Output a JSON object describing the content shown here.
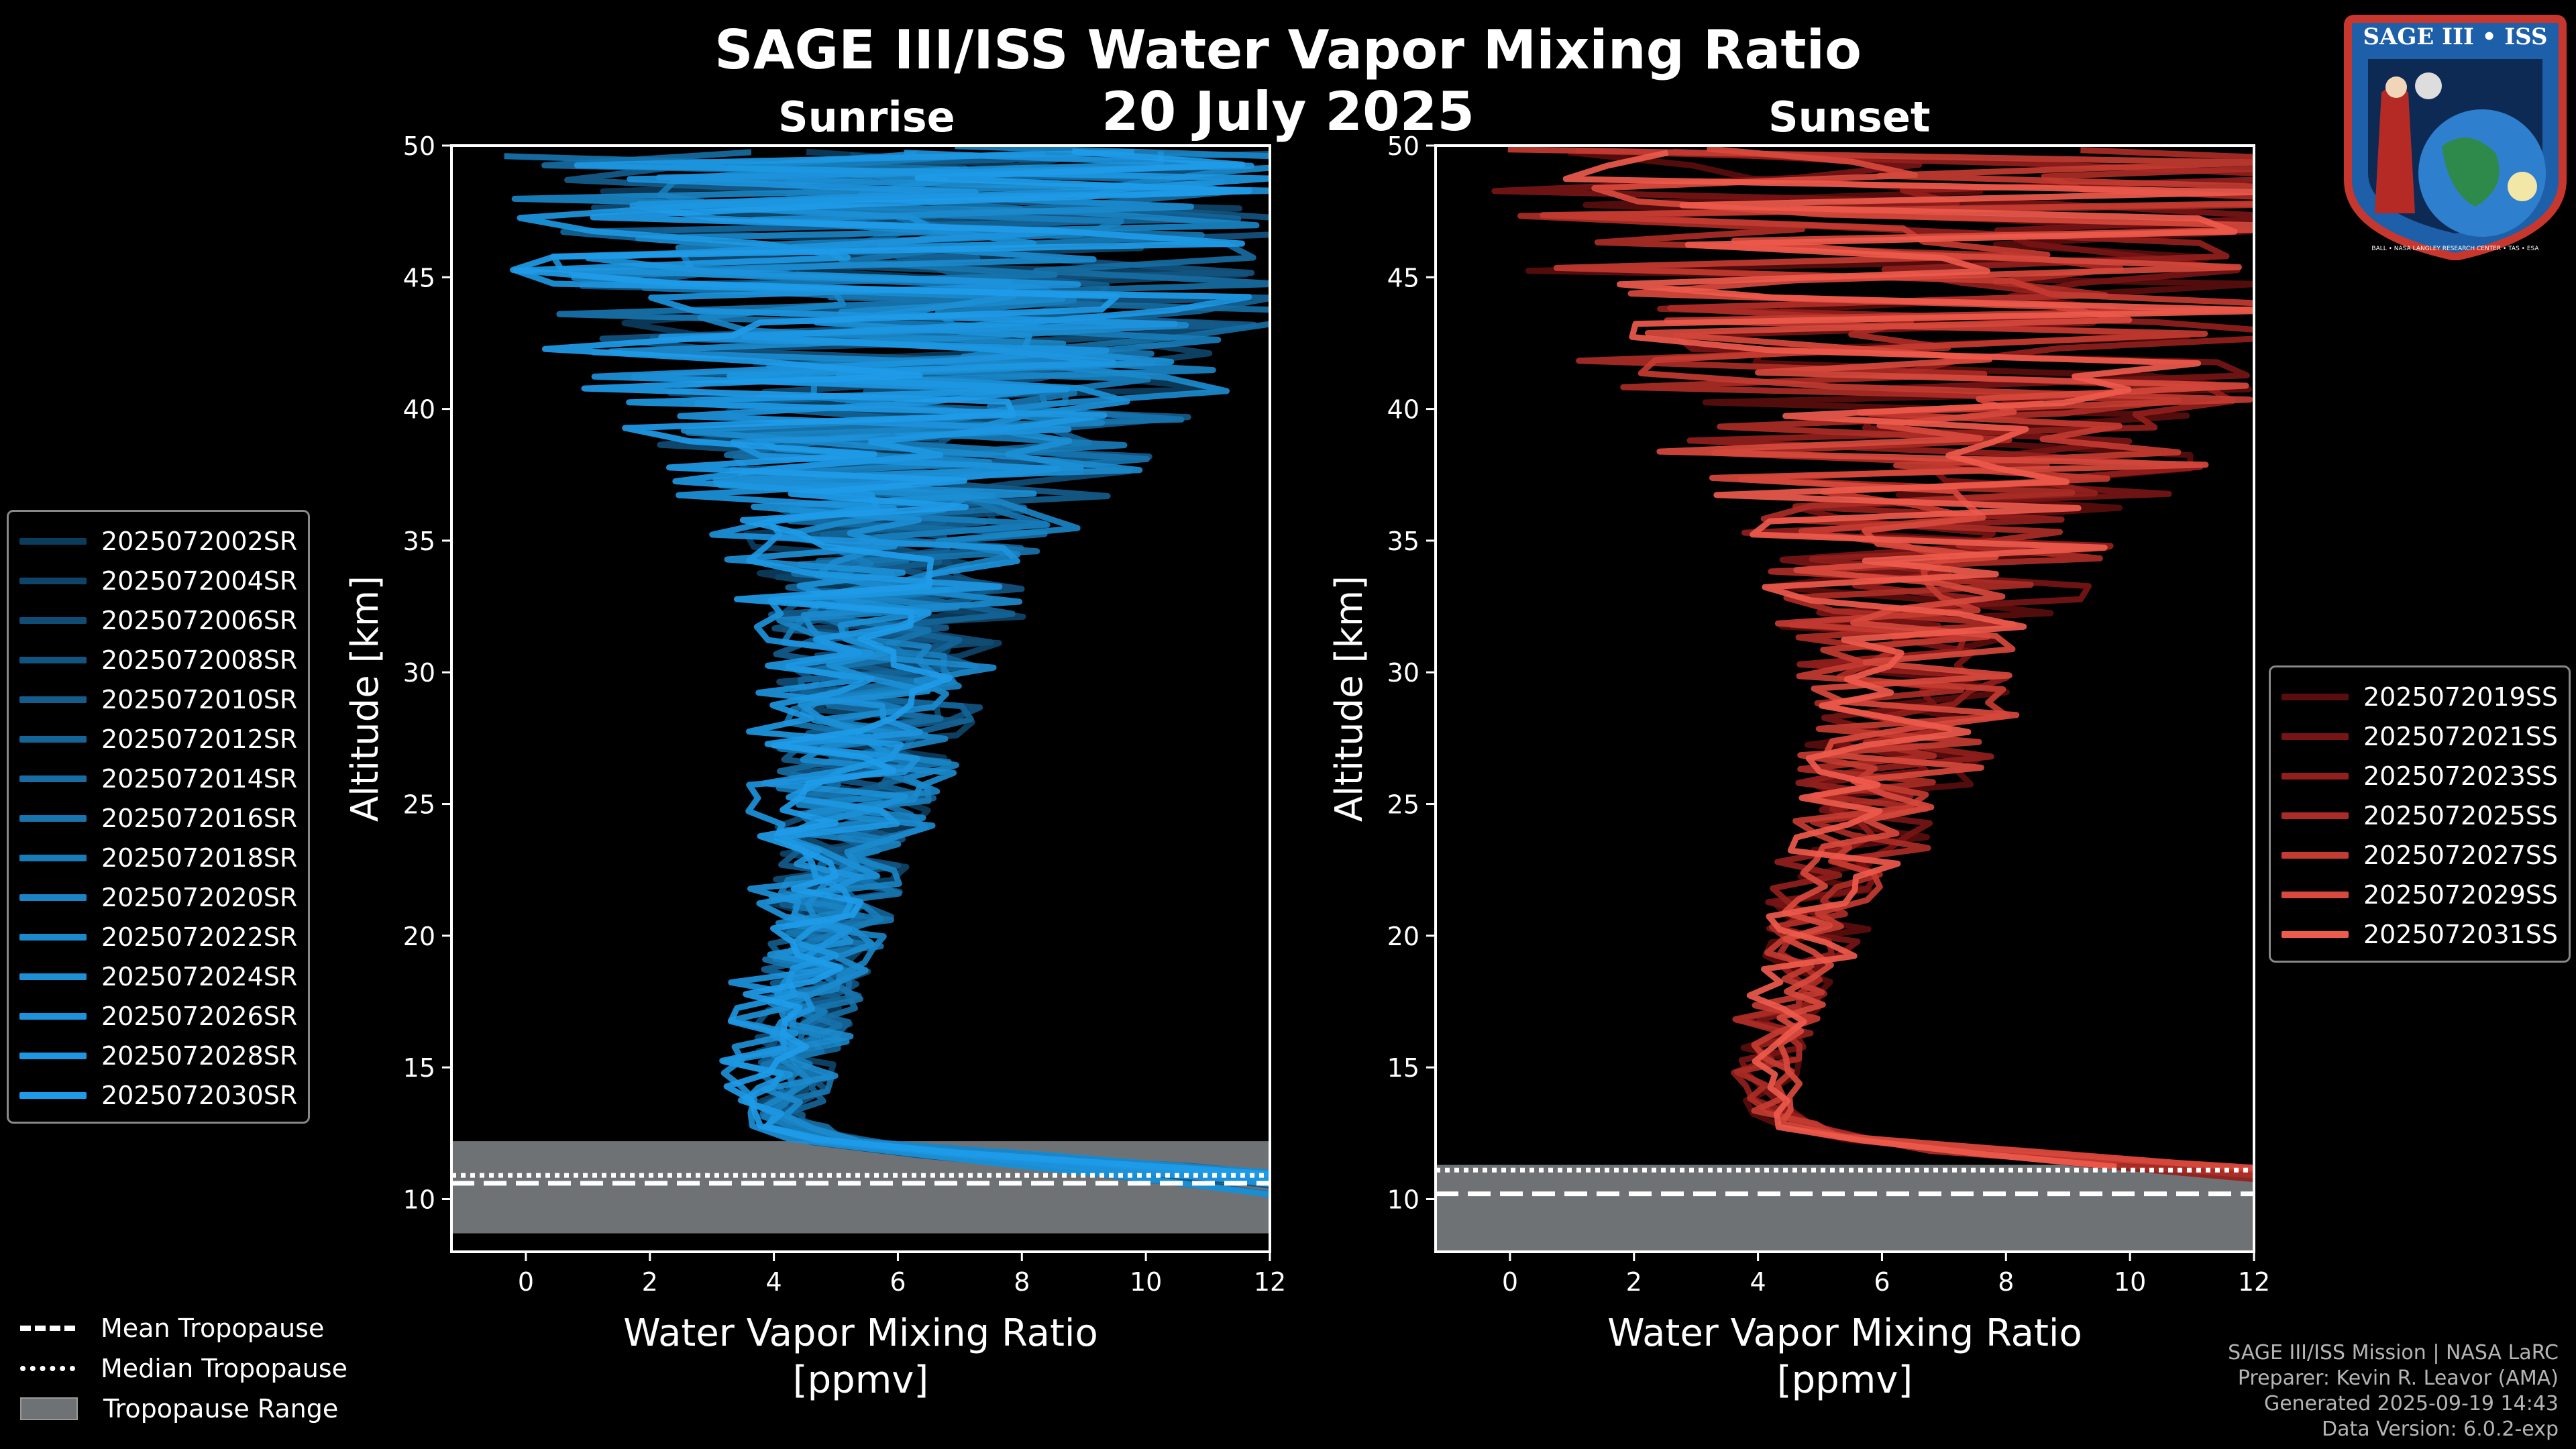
{
  "header": {
    "main_title": "SAGE III/ISS Water Vapor Mixing Ratio",
    "date": "20 July 2025",
    "logo_text": "SAGE III • ISS",
    "logo_ring_text": "BALL • NASA LANGLEY RESEARCH CENTER • TAS • ESA"
  },
  "colors": {
    "background": "#000000",
    "sunrise_series": [
      "#0c3c5c",
      "#0e4468",
      "#104c74",
      "#125480",
      "#135c8c",
      "#146498",
      "#166ca3",
      "#1774ae",
      "#187cb9",
      "#1a84c4",
      "#1b8acd",
      "#1c8fd5",
      "#1d93dc",
      "#1d97e2",
      "#1e9be8"
    ],
    "sunset_series": [
      "#5a0d0d",
      "#771515",
      "#921f1c",
      "#ab2c26",
      "#c43b31",
      "#d8493d",
      "#ee5a4c"
    ],
    "tropopause_range": "#6f7275"
  },
  "chart_data": [
    {
      "type": "line",
      "panel_title": "Sunrise",
      "xlabel": "Water Vapor Mixing Ratio\n[ppmv]",
      "xlabel_lines": [
        "Water Vapor Mixing Ratio",
        "[ppmv]"
      ],
      "ylabel": "Altitude [km]",
      "xlim": [
        -1.2,
        12
      ],
      "ylim": [
        8,
        50
      ],
      "xticks": [
        0,
        2,
        4,
        6,
        8,
        10,
        12
      ],
      "yticks": [
        10,
        15,
        20,
        25,
        30,
        35,
        40,
        45,
        50
      ],
      "grid": false,
      "legend_position": "left",
      "series_names": [
        "2025072002SR",
        "2025072004SR",
        "2025072006SR",
        "2025072008SR",
        "2025072010SR",
        "2025072012SR",
        "2025072014SR",
        "2025072016SR",
        "2025072018SR",
        "2025072020SR",
        "2025072022SR",
        "2025072024SR",
        "2025072026SR",
        "2025072028SR",
        "2025072030SR"
      ],
      "profile_mean": {
        "altitude_km": [
          8.5,
          9.5,
          10.5,
          11.5,
          12.0,
          12.5,
          13.5,
          15,
          17,
          20,
          23,
          26,
          29,
          32,
          35,
          38,
          41,
          44,
          47,
          49.5
        ],
        "ppmv": [
          12,
          11,
          9,
          6,
          4.5,
          4.2,
          4.0,
          4.1,
          4.3,
          4.6,
          4.9,
          5.2,
          5.5,
          5.7,
          5.9,
          6.0,
          6.1,
          6.2,
          6.3,
          6.3
        ]
      },
      "profile_spread_ppmv": {
        "altitude_km": [
          12,
          15,
          20,
          25,
          30,
          35,
          38,
          42,
          46,
          50
        ],
        "ppmv": [
          0.4,
          0.6,
          0.9,
          1.2,
          1.6,
          2.3,
          3.5,
          5.0,
          6.0,
          6.5
        ]
      },
      "tropopause": {
        "mean_km": 10.6,
        "median_km": 10.9,
        "range_km": [
          8.7,
          12.2
        ]
      }
    },
    {
      "type": "line",
      "panel_title": "Sunset",
      "xlabel": "Water Vapor Mixing Ratio\n[ppmv]",
      "xlabel_lines": [
        "Water Vapor Mixing Ratio",
        "[ppmv]"
      ],
      "ylabel": "Altitude [km]",
      "xlim": [
        -1.2,
        12
      ],
      "ylim": [
        8,
        50
      ],
      "xticks": [
        0,
        2,
        4,
        6,
        8,
        10,
        12
      ],
      "yticks": [
        10,
        15,
        20,
        25,
        30,
        35,
        40,
        45,
        50
      ],
      "grid": false,
      "legend_position": "right",
      "series_names": [
        "2025072019SS",
        "2025072021SS",
        "2025072023SS",
        "2025072025SS",
        "2025072027SS",
        "2025072029SS",
        "2025072031SS"
      ],
      "profile_mean": {
        "altitude_km": [
          10.2,
          11.0,
          11.8,
          12.5,
          13.5,
          15,
          17,
          20,
          23,
          26,
          29,
          32,
          35,
          38,
          41,
          44,
          47,
          49.5
        ],
        "ppmv": [
          12,
          9,
          6,
          4.5,
          4.0,
          3.9,
          4.1,
          4.7,
          5.3,
          5.9,
          6.3,
          6.5,
          6.6,
          6.7,
          6.8,
          6.9,
          7.0,
          7.0
        ],
        "note_low_alt": "curves extend off the right edge below ~12 km"
      },
      "profile_spread_ppmv": {
        "altitude_km": [
          12,
          15,
          20,
          25,
          30,
          35,
          38,
          42,
          46,
          50
        ],
        "ppmv": [
          0.4,
          0.5,
          0.8,
          1.3,
          1.8,
          2.8,
          4.0,
          5.5,
          6.5,
          7.0
        ]
      },
      "tropopause": {
        "mean_km": 10.2,
        "median_km": 11.1,
        "range_km": [
          8.0,
          11.3
        ]
      }
    }
  ],
  "legend_tropopause": [
    {
      "label": "Mean Tropopause",
      "style": "dashed"
    },
    {
      "label": "Median Tropopause",
      "style": "dotted"
    },
    {
      "label": "Tropopause Range",
      "style": "fill"
    }
  ],
  "credits": {
    "line1": "SAGE III/ISS Mission | NASA LaRC",
    "line2": "Preparer: Kevin R. Leavor (AMA)",
    "line3": "Generated 2025-09-19 14:43",
    "line4": "Data Version: 6.0.2-exp"
  }
}
